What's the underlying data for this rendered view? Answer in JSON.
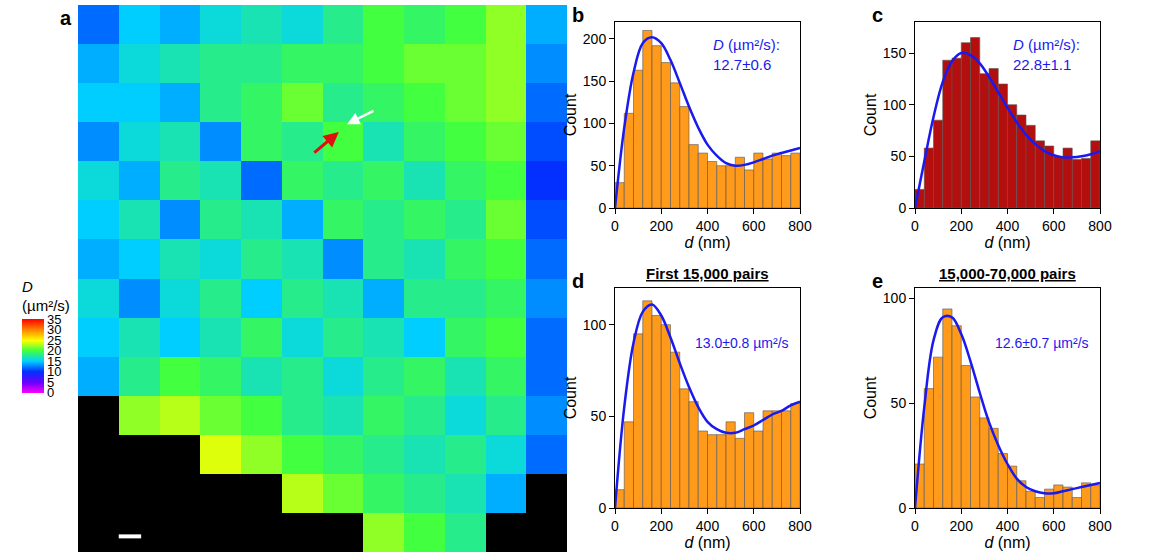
{
  "chart_data": [
    {
      "type": "heatmap",
      "panel_label": "a",
      "tick_labels": false,
      "cells": [
        [
          12,
          15,
          14,
          16,
          17,
          16,
          18,
          20,
          19,
          20,
          22,
          14
        ],
        [
          14,
          16,
          17,
          18,
          18,
          19,
          19,
          20,
          21,
          21,
          22,
          13
        ],
        [
          15,
          15,
          14,
          18,
          19,
          21,
          18,
          19,
          20,
          21,
          22,
          12
        ],
        [
          13,
          16,
          17,
          13,
          19,
          18,
          20,
          17,
          19,
          20,
          21,
          11
        ],
        [
          16,
          14,
          18,
          17,
          12,
          19,
          18,
          19,
          17,
          19,
          20,
          10
        ],
        [
          15,
          17,
          13,
          18,
          17,
          14,
          19,
          18,
          19,
          18,
          21,
          11
        ],
        [
          14,
          15,
          17,
          16,
          18,
          17,
          13,
          18,
          17,
          19,
          20,
          12
        ],
        [
          16,
          13,
          16,
          18,
          15,
          18,
          17,
          14,
          18,
          18,
          19,
          13
        ],
        [
          15,
          17,
          15,
          17,
          19,
          16,
          18,
          17,
          15,
          19,
          20,
          12
        ],
        [
          14,
          18,
          20,
          19,
          17,
          18,
          16,
          18,
          19,
          17,
          19,
          12
        ],
        [
          null,
          22,
          23,
          21,
          20,
          18,
          17,
          19,
          18,
          16,
          18,
          13
        ],
        [
          null,
          null,
          null,
          24,
          22,
          20,
          19,
          18,
          17,
          18,
          16,
          12
        ],
        [
          null,
          null,
          null,
          null,
          null,
          23,
          21,
          19,
          18,
          17,
          14,
          null
        ],
        [
          null,
          null,
          null,
          null,
          null,
          null,
          null,
          22,
          20,
          18,
          null,
          null
        ]
      ],
      "colorbar": {
        "title": "D (µm²/s)",
        "range": [
          0,
          35
        ],
        "ticks": [
          0,
          5,
          10,
          15,
          20,
          25,
          30,
          35
        ]
      }
    },
    {
      "type": "histogram",
      "panel_label": "b",
      "x_label": "d (nm)",
      "y_label": "Count",
      "color": "#ff9a1a",
      "bins": [
        0,
        40,
        80,
        120,
        160,
        200,
        240,
        280,
        320,
        360,
        400,
        440,
        480,
        520,
        560,
        600,
        640,
        680,
        720,
        760,
        800
      ],
      "counts": [
        30,
        112,
        163,
        210,
        192,
        172,
        148,
        120,
        75,
        65,
        55,
        50,
        50,
        60,
        45,
        65,
        58,
        65,
        62,
        65
      ],
      "fit": {
        "color": "#1a1aee",
        "x": [
          0,
          40,
          80,
          120,
          160,
          200,
          240,
          280,
          320,
          360,
          400,
          440,
          480,
          520,
          560,
          600,
          640,
          680,
          720,
          760,
          800
        ],
        "values": [
          0,
          95,
          160,
          195,
          202,
          195,
          175,
          148,
          120,
          95,
          75,
          62,
          53,
          50,
          51,
          54,
          58,
          62,
          65,
          68,
          71
        ]
      },
      "annotations": [
        "D (µm²/s):",
        "12.7±0.6"
      ],
      "xlim": [
        0,
        800
      ],
      "xticks": [
        0,
        200,
        400,
        600,
        800
      ],
      "ylim": [
        0,
        220
      ],
      "yticks": [
        0,
        50,
        100,
        150,
        200
      ]
    },
    {
      "type": "histogram",
      "panel_label": "c",
      "x_label": "d (nm)",
      "y_label": "Count",
      "color": "#b40f0f",
      "bins": [
        0,
        40,
        80,
        120,
        160,
        200,
        240,
        280,
        320,
        360,
        400,
        440,
        480,
        520,
        560,
        600,
        640,
        680,
        720,
        760,
        800
      ],
      "counts": [
        18,
        58,
        85,
        143,
        145,
        160,
        165,
        130,
        135,
        120,
        100,
        90,
        80,
        65,
        60,
        50,
        58,
        47,
        48,
        65
      ],
      "fit": {
        "color": "#1a1aee",
        "x": [
          0,
          40,
          80,
          120,
          160,
          200,
          240,
          280,
          320,
          360,
          400,
          440,
          480,
          520,
          560,
          600,
          640,
          680,
          720,
          760,
          800
        ],
        "values": [
          0,
          45,
          88,
          122,
          142,
          150,
          148,
          140,
          127,
          112,
          97,
          83,
          71,
          62,
          55,
          51,
          49,
          49,
          50,
          52,
          55
        ]
      },
      "annotations": [
        "D (µm²/s):",
        "22.8±1.1"
      ],
      "xlim": [
        0,
        800
      ],
      "xticks": [
        0,
        200,
        400,
        600,
        800
      ],
      "ylim": [
        0,
        180
      ],
      "yticks": [
        0,
        50,
        100,
        150
      ]
    },
    {
      "type": "histogram",
      "panel_label": "d",
      "title": "First 15,000 pairs",
      "x_label": "d (nm)",
      "y_label": "Count",
      "color": "#ff9a1a",
      "bins": [
        0,
        40,
        80,
        120,
        160,
        200,
        240,
        280,
        320,
        360,
        400,
        440,
        480,
        520,
        560,
        600,
        640,
        680,
        720,
        760,
        800
      ],
      "counts": [
        10,
        47,
        95,
        113,
        105,
        100,
        85,
        65,
        58,
        42,
        40,
        40,
        47,
        38,
        52,
        42,
        53,
        53,
        53,
        57
      ],
      "fit": {
        "color": "#1a1aee",
        "x": [
          0,
          40,
          80,
          120,
          160,
          200,
          240,
          280,
          320,
          360,
          400,
          440,
          480,
          520,
          560,
          600,
          640,
          680,
          720,
          760,
          800
        ],
        "values": [
          0,
          55,
          90,
          107,
          111,
          105,
          93,
          79,
          66,
          55,
          47,
          43,
          41,
          41,
          43,
          45,
          48,
          51,
          53,
          56,
          58
        ]
      },
      "annotations": [
        "13.0±0.8 µm²/s"
      ],
      "xlim": [
        0,
        800
      ],
      "xticks": [
        0,
        200,
        400,
        600,
        800
      ],
      "ylim": [
        0,
        120
      ],
      "yticks": [
        0,
        50,
        100
      ]
    },
    {
      "type": "histogram",
      "panel_label": "e",
      "title": "15,000-70,000 pairs",
      "x_label": "d (nm)",
      "y_label": "Count",
      "color": "#ff9a1a",
      "bins": [
        0,
        40,
        80,
        120,
        160,
        200,
        240,
        280,
        320,
        360,
        400,
        440,
        480,
        520,
        560,
        600,
        640,
        680,
        720,
        760,
        800
      ],
      "counts": [
        21,
        57,
        72,
        95,
        87,
        68,
        53,
        43,
        38,
        26,
        20,
        13,
        8,
        5,
        9,
        11,
        10,
        5,
        12,
        11
      ],
      "fit": {
        "color": "#1a1aee",
        "x": [
          0,
          40,
          80,
          120,
          160,
          200,
          240,
          280,
          320,
          360,
          400,
          440,
          480,
          520,
          560,
          600,
          640,
          680,
          720,
          760,
          800
        ],
        "values": [
          0,
          48,
          80,
          91,
          91,
          83,
          70,
          55,
          41,
          30,
          21,
          14,
          10,
          8,
          7,
          7,
          8,
          9,
          10,
          11,
          12
        ]
      },
      "annotations": [
        "12.6±0.7 µm²/s"
      ],
      "xlim": [
        0,
        800
      ],
      "xticks": [
        0,
        200,
        400,
        600,
        800
      ],
      "ylim": [
        0,
        105
      ],
      "yticks": [
        0,
        50,
        100
      ]
    }
  ]
}
